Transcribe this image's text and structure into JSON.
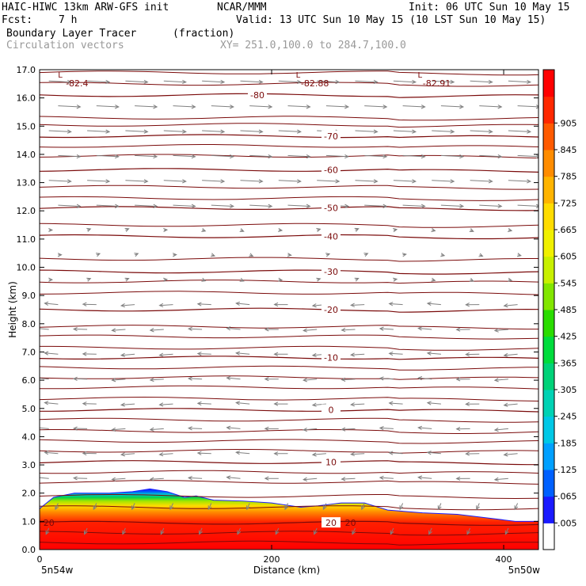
{
  "header": {
    "model": "HAIC-HIWC 13km ARW-GFS init",
    "org": "NCAR/MMM",
    "init": "Init: 06 UTC Sun 10 May 15",
    "fcst_label": "Fcst:",
    "fcst_value": "7 h",
    "valid": "Valid: 13 UTC Sun 10 May 15 (10 LST Sun 10 May 15)",
    "field": "Boundary Layer Tracer",
    "units": "(fraction)",
    "vectors": "Circulation vectors",
    "xy": "XY= 251.0,100.0 to 284.7,100.0"
  },
  "colors": {
    "contour": "#7a0a0a",
    "vector": "#808080",
    "low_label": "#7a0a0a"
  },
  "chart_data": {
    "type": "heatmap",
    "title": "Boundary Layer Tracer (fraction)",
    "xlabel": "Distance (km)",
    "ylabel": "Height (km)",
    "xlim": [
      0,
      430
    ],
    "ylim": [
      0,
      17
    ],
    "x_ticks": [
      "0",
      "200",
      "400"
    ],
    "x_tick_values": [
      0,
      200,
      400
    ],
    "y_ticks": [
      "0.0",
      "1.0",
      "2.0",
      "3.0",
      "4.0",
      "5.0",
      "6.0",
      "7.0",
      "8.0",
      "9.0",
      "10.0",
      "11.0",
      "12.0",
      "13.0",
      "14.0",
      "15.0",
      "16.0",
      "17.0"
    ],
    "start_label": "5n54w",
    "end_label": "5n50w",
    "colorbar": {
      "labels": [
        ".005",
        ".065",
        ".125",
        ".185",
        ".245",
        ".305",
        ".365",
        ".425",
        ".485",
        ".545",
        ".605",
        ".665",
        ".725",
        ".785",
        ".845",
        ".905"
      ],
      "colors": [
        "#ffffff",
        "#1a1aff",
        "#0060ff",
        "#00a0ff",
        "#00c8e6",
        "#00d2b4",
        "#00d278",
        "#00dc3c",
        "#2adc00",
        "#82e600",
        "#c8f000",
        "#f0f000",
        "#ffdc00",
        "#ffb400",
        "#ff8c00",
        "#ff5a00",
        "#ff2800",
        "#ff0000"
      ]
    },
    "boundary_layer_top_km": [
      [
        0,
        1.45
      ],
      [
        12,
        1.85
      ],
      [
        30,
        2.0
      ],
      [
        60,
        2.0
      ],
      [
        80,
        2.05
      ],
      [
        95,
        2.15
      ],
      [
        110,
        2.05
      ],
      [
        125,
        1.85
      ],
      [
        135,
        1.9
      ],
      [
        150,
        1.75
      ],
      [
        175,
        1.72
      ],
      [
        200,
        1.65
      ],
      [
        225,
        1.5
      ],
      [
        240,
        1.55
      ],
      [
        260,
        1.65
      ],
      [
        280,
        1.65
      ],
      [
        300,
        1.4
      ],
      [
        330,
        1.3
      ],
      [
        360,
        1.25
      ],
      [
        390,
        1.1
      ],
      [
        410,
        1.0
      ],
      [
        430,
        1.0
      ]
    ],
    "isotherms": [
      {
        "label": "-80",
        "height_km": 16.1
      },
      {
        "label": "-70",
        "height_km": 14.65
      },
      {
        "label": "-60",
        "height_km": 13.45
      },
      {
        "label": "-50",
        "height_km": 12.1
      },
      {
        "label": "-40",
        "height_km": 11.1
      },
      {
        "label": "-30",
        "height_km": 9.85
      },
      {
        "label": "-20",
        "height_km": 8.5
      },
      {
        "label": "-10",
        "height_km": 6.8
      },
      {
        "label": "0",
        "height_km": 4.95
      },
      {
        "label": "10",
        "height_km": 3.1
      },
      {
        "label": "20",
        "height_km": 0.95
      }
    ],
    "extra_contour_heights_km": [
      16.9,
      16.5,
      15.3,
      15.05,
      14.3,
      13.95,
      12.85,
      12.45,
      11.5,
      10.3,
      9.5,
      9.1,
      7.9,
      7.55,
      7.15,
      6.45,
      6.1,
      5.75,
      5.35,
      4.6,
      4.2,
      3.85,
      3.5,
      2.75,
      2.4,
      1.9,
      1.5,
      0.6,
      0.25
    ],
    "lows": [
      {
        "symbol": "L",
        "value": "-82.4",
        "x_km": 20
      },
      {
        "symbol": "L",
        "value": "-82.88",
        "x_km": 225
      },
      {
        "symbol": "L",
        "value": "-82.91",
        "x_km": 330
      }
    ]
  }
}
